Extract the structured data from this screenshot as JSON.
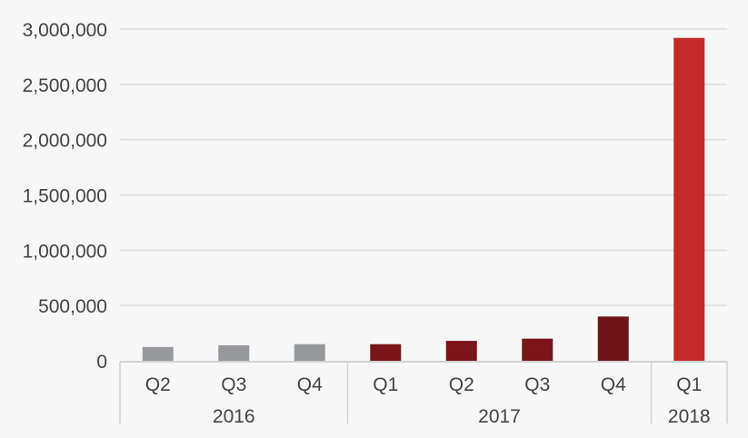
{
  "chart_data": {
    "type": "bar",
    "title": "",
    "xlabel": "",
    "ylabel": "",
    "ylim": [
      0,
      3000000
    ],
    "yticks": [
      0,
      500000,
      1000000,
      1500000,
      2000000,
      2500000,
      3000000
    ],
    "ytick_labels": [
      "0",
      "500,000",
      "1,000,000",
      "1,500,000",
      "2,000,000",
      "2,500,000",
      "3,000,000"
    ],
    "grid": true,
    "legend": "none",
    "categories": [
      "Q2",
      "Q3",
      "Q4",
      "Q1",
      "Q2",
      "Q3",
      "Q4",
      "Q1"
    ],
    "groups": [
      {
        "label": "2016",
        "count": 3
      },
      {
        "label": "2017",
        "count": 4
      },
      {
        "label": "2018",
        "count": 1
      }
    ],
    "values": [
      125000,
      140000,
      150000,
      150000,
      180000,
      200000,
      400000,
      2920000
    ],
    "colors": [
      "#97989b",
      "#97989b",
      "#97989b",
      "#7a1519",
      "#7a1519",
      "#7a1519",
      "#6e1417",
      "#c42a2a"
    ]
  }
}
